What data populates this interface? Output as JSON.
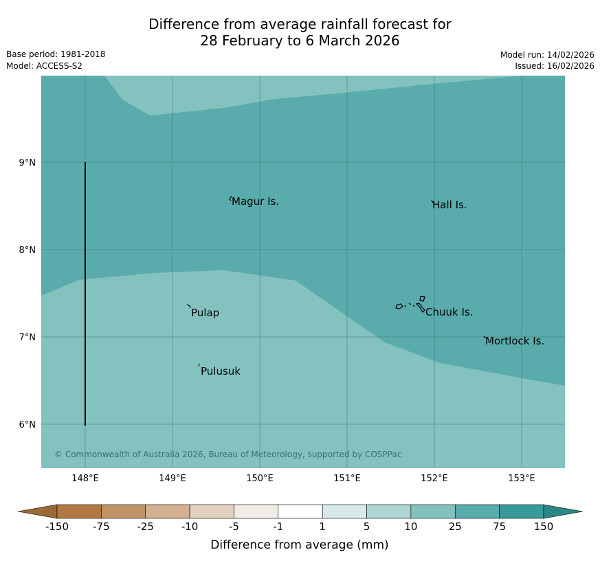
{
  "header": {
    "title_line1": "Difference from average rainfall forecast for",
    "title_line2": "28 February to 6 March 2026",
    "base_period": "Base period: 1981-2018",
    "model": "Model: ACCESS-S2",
    "model_run": "Model run: 14/02/2026",
    "issued": "Issued: 16/02/2026"
  },
  "map": {
    "lat_labels": [
      "9°N",
      "8°N",
      "7°N",
      "6°N"
    ],
    "lon_labels": [
      "148°E",
      "149°E",
      "150°E",
      "151°E",
      "152°E",
      "153°E"
    ],
    "extent": {
      "lon_min": 147.5,
      "lon_max": 153.5,
      "lat_min": 5.5,
      "lat_max": 10.0
    },
    "colors": {
      "band_10_25": "#84c2c0",
      "band_25_75": "#5aabab",
      "grid": "#3f7d7b"
    },
    "places": [
      {
        "name": "Magur Is.",
        "lon": 149.68,
        "lat": 8.55
      },
      {
        "name": "Hall Is.",
        "lon": 151.98,
        "lat": 8.52
      },
      {
        "name": "Pulap",
        "lon": 149.22,
        "lat": 7.3
      },
      {
        "name": "Chuuk Is.",
        "lon": 151.85,
        "lat": 7.3
      },
      {
        "name": "Mortlock Is.",
        "lon": 152.58,
        "lat": 6.97
      },
      {
        "name": "Pulusuk",
        "lon": 149.32,
        "lat": 6.66
      }
    ],
    "copyright": "© Commonwealth of Australia 2026, Bureau of Meteorology, supported by COSPPac"
  },
  "legend": {
    "tick_labels": [
      "-150",
      "-75",
      "-25",
      "-10",
      "-5",
      "-1",
      "1",
      "5",
      "10",
      "25",
      "75",
      "150"
    ],
    "colors": [
      "#b07941",
      "#c19468",
      "#d3b08f",
      "#e3d0bf",
      "#f0ece6",
      "#ffffff",
      "#d7eae9",
      "#acd6d4",
      "#84c2c0",
      "#5aabab",
      "#38999b"
    ],
    "under_color": "#9b6a35",
    "over_color": "#2b8686",
    "label": "Difference from average (mm)"
  }
}
